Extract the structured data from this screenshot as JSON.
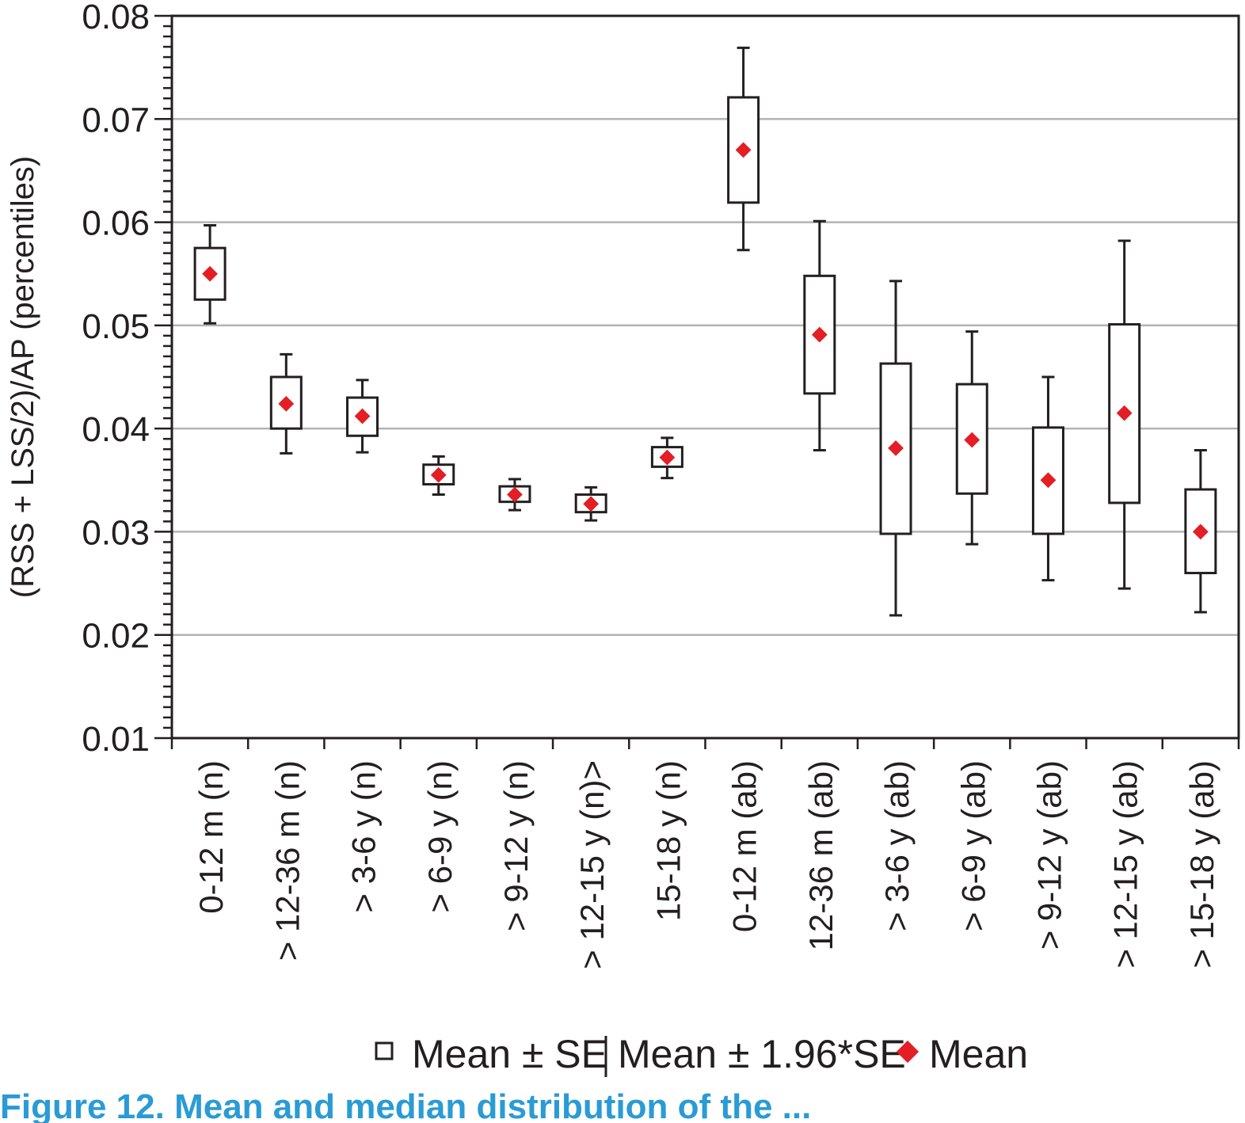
{
  "chart_data": {
    "type": "box",
    "ylabel": "(RSS + LSS/2)/AP (percentiles)",
    "ylim": [
      0.01,
      0.08
    ],
    "y_ticks": [
      "0.01",
      "0.02",
      "0.03",
      "0.04",
      "0.05",
      "0.06",
      "0.07",
      "0.08"
    ],
    "grid": "horizontal",
    "categories": [
      "0-12 m (n)",
      "> 12-36 m (n)",
      "> 3-6 y (n)",
      "> 6-9 y (n)",
      "> 9-12 y (n)",
      "> 12-15 y (n)>",
      "15-18 y (n)",
      "0-12 m (ab)",
      "12-36 m (ab)",
      "> 3-6 y (ab)",
      "> 6-9 y (ab)",
      "> 9-12 y (ab)",
      "> 12-15 y (ab)",
      "> 15-18 y (ab)"
    ],
    "mean": [
      0.055,
      0.0424,
      0.0412,
      0.0355,
      0.0336,
      0.0327,
      0.0372,
      0.067,
      0.0491,
      0.0381,
      0.0389,
      0.035,
      0.0415,
      0.03
    ],
    "se_low": [
      0.0525,
      0.04,
      0.0393,
      0.0346,
      0.0329,
      0.0319,
      0.0363,
      0.0619,
      0.0434,
      0.0298,
      0.0337,
      0.0298,
      0.0328,
      0.026
    ],
    "se_high": [
      0.0575,
      0.045,
      0.043,
      0.0365,
      0.0344,
      0.0336,
      0.0382,
      0.0721,
      0.0548,
      0.0463,
      0.0443,
      0.0401,
      0.0501,
      0.0341
    ],
    "ci_low": [
      0.0502,
      0.0376,
      0.0377,
      0.0336,
      0.0321,
      0.0311,
      0.0352,
      0.0573,
      0.0379,
      0.0219,
      0.0288,
      0.0253,
      0.0245,
      0.0222
    ],
    "ci_high": [
      0.0597,
      0.0472,
      0.0447,
      0.0373,
      0.0351,
      0.0343,
      0.0391,
      0.0769,
      0.0601,
      0.0543,
      0.0494,
      0.045,
      0.0582,
      0.0379
    ],
    "legend": {
      "position": "bottom",
      "items": [
        "Mean ± SE",
        "Mean ± 1.96*SE",
        "Mean"
      ]
    },
    "colors": {
      "mean_marker": "#e31e24",
      "box": "#231f20",
      "grid": "#b3b3b3"
    }
  },
  "caption": "Figure 12. Mean and median distribution of the ..."
}
